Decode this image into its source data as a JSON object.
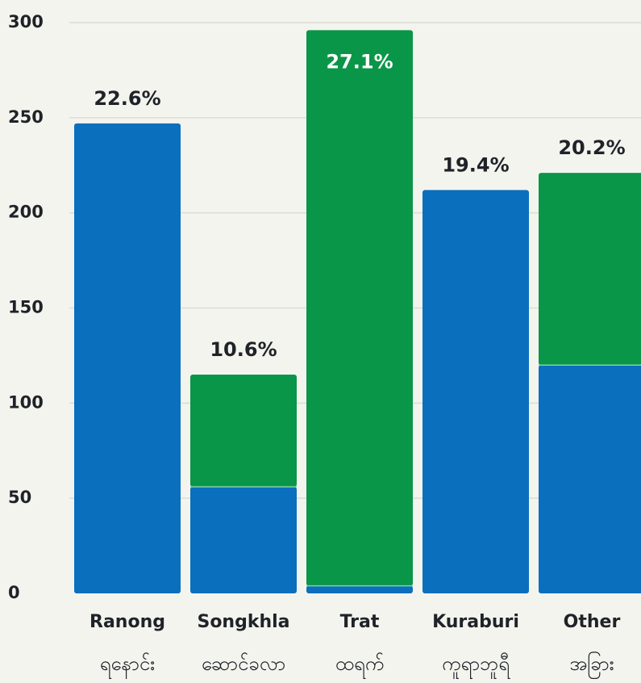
{
  "chart_data": {
    "type": "stacked_bar",
    "categories": [
      "Ranong",
      "Songkhla",
      "Trat",
      "Kuraburi",
      "Other"
    ],
    "category_sublabels": [
      "ရနောင်း",
      "ဆောင်ခလာ",
      "ထရက်",
      "ကူရာဘူရီ",
      "အခြား"
    ],
    "series": [
      {
        "color": "#0a6fbd",
        "values": [
          247,
          56,
          4,
          212,
          120
        ]
      },
      {
        "color": "#0a9648",
        "values": [
          0,
          59,
          292,
          0,
          101
        ]
      }
    ],
    "share_labels": [
      "22.6%",
      "10.6%",
      "27.1%",
      "19.4%",
      "20.2%"
    ],
    "ylim": [
      0,
      300
    ],
    "yticks": [
      0,
      50,
      100,
      150,
      200,
      250,
      300
    ],
    "grid": true
  }
}
